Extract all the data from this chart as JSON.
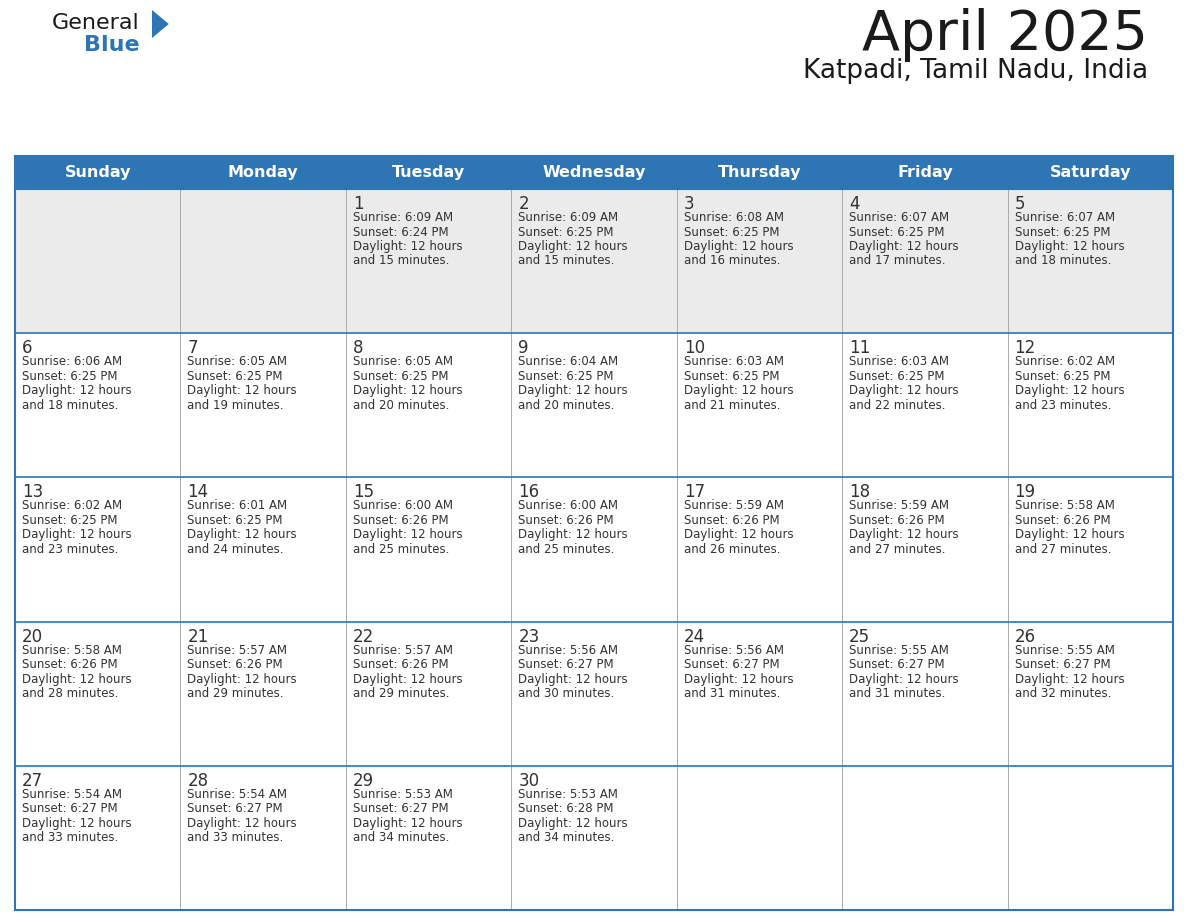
{
  "title": "April 2025",
  "subtitle": "Katpadi, Tamil Nadu, India",
  "header_bg_color": "#2E75B6",
  "header_text_color": "#FFFFFF",
  "cell_bg_color": "#FFFFFF",
  "cell_row0_bg_color": "#EBEBEB",
  "border_color": "#2E75B6",
  "day_names": [
    "Sunday",
    "Monday",
    "Tuesday",
    "Wednesday",
    "Thursday",
    "Friday",
    "Saturday"
  ],
  "title_color": "#1A1A1A",
  "subtitle_color": "#1A1A1A",
  "text_color": "#333333",
  "logo_text_color": "#1A1A1A",
  "logo_blue_color": "#2E75B6",
  "days": [
    {
      "date": 1,
      "col": 2,
      "row": 0,
      "sunrise": "6:09 AM",
      "sunset": "6:24 PM",
      "daylight": "12 hours and 15 minutes."
    },
    {
      "date": 2,
      "col": 3,
      "row": 0,
      "sunrise": "6:09 AM",
      "sunset": "6:25 PM",
      "daylight": "12 hours and 15 minutes."
    },
    {
      "date": 3,
      "col": 4,
      "row": 0,
      "sunrise": "6:08 AM",
      "sunset": "6:25 PM",
      "daylight": "12 hours and 16 minutes."
    },
    {
      "date": 4,
      "col": 5,
      "row": 0,
      "sunrise": "6:07 AM",
      "sunset": "6:25 PM",
      "daylight": "12 hours and 17 minutes."
    },
    {
      "date": 5,
      "col": 6,
      "row": 0,
      "sunrise": "6:07 AM",
      "sunset": "6:25 PM",
      "daylight": "12 hours and 18 minutes."
    },
    {
      "date": 6,
      "col": 0,
      "row": 1,
      "sunrise": "6:06 AM",
      "sunset": "6:25 PM",
      "daylight": "12 hours and 18 minutes."
    },
    {
      "date": 7,
      "col": 1,
      "row": 1,
      "sunrise": "6:05 AM",
      "sunset": "6:25 PM",
      "daylight": "12 hours and 19 minutes."
    },
    {
      "date": 8,
      "col": 2,
      "row": 1,
      "sunrise": "6:05 AM",
      "sunset": "6:25 PM",
      "daylight": "12 hours and 20 minutes."
    },
    {
      "date": 9,
      "col": 3,
      "row": 1,
      "sunrise": "6:04 AM",
      "sunset": "6:25 PM",
      "daylight": "12 hours and 20 minutes."
    },
    {
      "date": 10,
      "col": 4,
      "row": 1,
      "sunrise": "6:03 AM",
      "sunset": "6:25 PM",
      "daylight": "12 hours and 21 minutes."
    },
    {
      "date": 11,
      "col": 5,
      "row": 1,
      "sunrise": "6:03 AM",
      "sunset": "6:25 PM",
      "daylight": "12 hours and 22 minutes."
    },
    {
      "date": 12,
      "col": 6,
      "row": 1,
      "sunrise": "6:02 AM",
      "sunset": "6:25 PM",
      "daylight": "12 hours and 23 minutes."
    },
    {
      "date": 13,
      "col": 0,
      "row": 2,
      "sunrise": "6:02 AM",
      "sunset": "6:25 PM",
      "daylight": "12 hours and 23 minutes."
    },
    {
      "date": 14,
      "col": 1,
      "row": 2,
      "sunrise": "6:01 AM",
      "sunset": "6:25 PM",
      "daylight": "12 hours and 24 minutes."
    },
    {
      "date": 15,
      "col": 2,
      "row": 2,
      "sunrise": "6:00 AM",
      "sunset": "6:26 PM",
      "daylight": "12 hours and 25 minutes."
    },
    {
      "date": 16,
      "col": 3,
      "row": 2,
      "sunrise": "6:00 AM",
      "sunset": "6:26 PM",
      "daylight": "12 hours and 25 minutes."
    },
    {
      "date": 17,
      "col": 4,
      "row": 2,
      "sunrise": "5:59 AM",
      "sunset": "6:26 PM",
      "daylight": "12 hours and 26 minutes."
    },
    {
      "date": 18,
      "col": 5,
      "row": 2,
      "sunrise": "5:59 AM",
      "sunset": "6:26 PM",
      "daylight": "12 hours and 27 minutes."
    },
    {
      "date": 19,
      "col": 6,
      "row": 2,
      "sunrise": "5:58 AM",
      "sunset": "6:26 PM",
      "daylight": "12 hours and 27 minutes."
    },
    {
      "date": 20,
      "col": 0,
      "row": 3,
      "sunrise": "5:58 AM",
      "sunset": "6:26 PM",
      "daylight": "12 hours and 28 minutes."
    },
    {
      "date": 21,
      "col": 1,
      "row": 3,
      "sunrise": "5:57 AM",
      "sunset": "6:26 PM",
      "daylight": "12 hours and 29 minutes."
    },
    {
      "date": 22,
      "col": 2,
      "row": 3,
      "sunrise": "5:57 AM",
      "sunset": "6:26 PM",
      "daylight": "12 hours and 29 minutes."
    },
    {
      "date": 23,
      "col": 3,
      "row": 3,
      "sunrise": "5:56 AM",
      "sunset": "6:27 PM",
      "daylight": "12 hours and 30 minutes."
    },
    {
      "date": 24,
      "col": 4,
      "row": 3,
      "sunrise": "5:56 AM",
      "sunset": "6:27 PM",
      "daylight": "12 hours and 31 minutes."
    },
    {
      "date": 25,
      "col": 5,
      "row": 3,
      "sunrise": "5:55 AM",
      "sunset": "6:27 PM",
      "daylight": "12 hours and 31 minutes."
    },
    {
      "date": 26,
      "col": 6,
      "row": 3,
      "sunrise": "5:55 AM",
      "sunset": "6:27 PM",
      "daylight": "12 hours and 32 minutes."
    },
    {
      "date": 27,
      "col": 0,
      "row": 4,
      "sunrise": "5:54 AM",
      "sunset": "6:27 PM",
      "daylight": "12 hours and 33 minutes."
    },
    {
      "date": 28,
      "col": 1,
      "row": 4,
      "sunrise": "5:54 AM",
      "sunset": "6:27 PM",
      "daylight": "12 hours and 33 minutes."
    },
    {
      "date": 29,
      "col": 2,
      "row": 4,
      "sunrise": "5:53 AM",
      "sunset": "6:27 PM",
      "daylight": "12 hours and 34 minutes."
    },
    {
      "date": 30,
      "col": 3,
      "row": 4,
      "sunrise": "5:53 AM",
      "sunset": "6:28 PM",
      "daylight": "12 hours and 34 minutes."
    }
  ]
}
